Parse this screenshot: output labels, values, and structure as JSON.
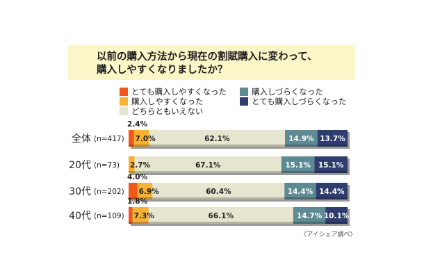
{
  "title_lines": [
    "以前の購入方法から現在の割賦購入に変わって、",
    "購入しやすくなりましたか？"
  ],
  "credit": "〈アイシェア調べ〉",
  "colors": {
    "much_easier": "#f2571a",
    "easier": "#f7b135",
    "neither": "#e6e5cf",
    "harder": "#5d8a93",
    "much_harder": "#2f3c6e"
  },
  "chart_data": {
    "type": "bar",
    "stacked": true,
    "orientation": "horizontal",
    "title": "以前の購入方法から現在の割賦購入に変わって、購入しやすくなりましたか？",
    "categories": [
      {
        "label": "全体",
        "n": "(n=417)"
      },
      {
        "label": "20代",
        "n": "(n=73)"
      },
      {
        "label": "30代",
        "n": "(n=202)"
      },
      {
        "label": "40代",
        "n": "(n=109)"
      }
    ],
    "series": [
      {
        "key": "much_easier",
        "name": "とても購入しやすくなった",
        "values": [
          2.4,
          0.0,
          4.0,
          1.8
        ],
        "labels": [
          "2.4%",
          "",
          "4.0%",
          "1.8%"
        ]
      },
      {
        "key": "easier",
        "name": "購入しやすくなった",
        "values": [
          7.0,
          2.7,
          6.9,
          7.3
        ],
        "labels": [
          "7.0%",
          "2.7%",
          "6.9%",
          "7.3%"
        ]
      },
      {
        "key": "neither",
        "name": "どちらともいえない",
        "values": [
          62.1,
          67.1,
          60.4,
          66.1
        ],
        "labels": [
          "62.1%",
          "67.1%",
          "60.4%",
          "66.1%"
        ]
      },
      {
        "key": "harder",
        "name": "購入しづらくなった",
        "values": [
          14.9,
          15.1,
          14.4,
          14.7
        ],
        "labels": [
          "14.9%",
          "15.1%",
          "14.4%",
          "14.7%"
        ]
      },
      {
        "key": "much_harder",
        "name": "とても購入しづらくなった",
        "values": [
          13.7,
          15.1,
          14.4,
          10.1
        ],
        "labels": [
          "13.7%",
          "15.1%",
          "14.4%",
          "10.1%"
        ]
      }
    ],
    "xlim": [
      0,
      100
    ]
  }
}
